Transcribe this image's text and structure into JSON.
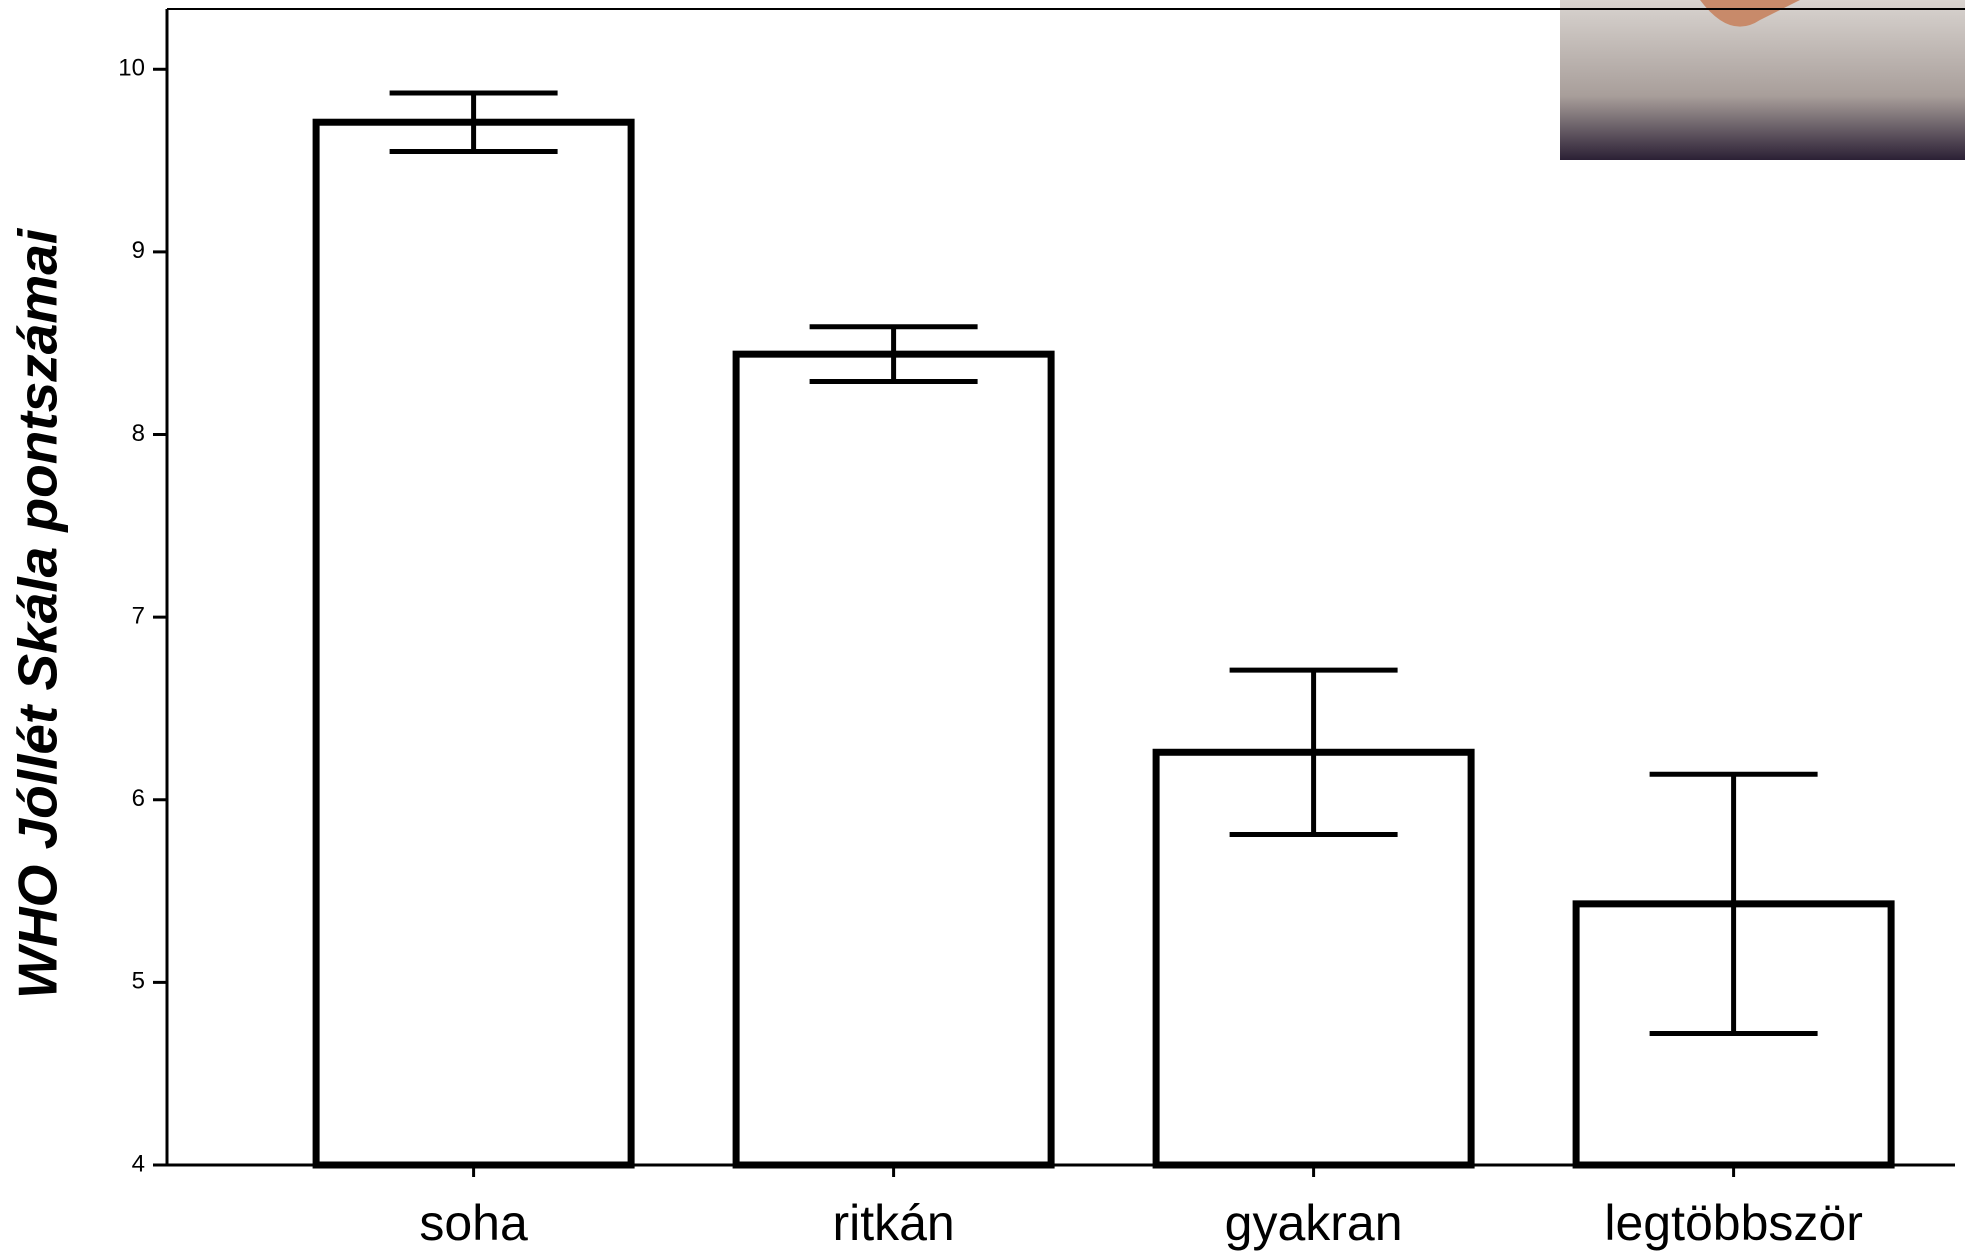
{
  "chart_data": {
    "type": "bar",
    "ylabel": "WHO Jóllét Skála pontszámai",
    "categories": [
      "soha",
      "ritkán",
      "gyakran",
      "legtöbbször"
    ],
    "values": [
      9.71,
      8.44,
      6.26,
      5.43
    ],
    "errors": [
      0.16,
      0.15,
      0.45,
      0.71
    ],
    "color": "#ffffff",
    "ylim": [
      4,
      10.33
    ],
    "yticks": [
      4,
      5,
      6,
      7,
      8,
      9,
      10
    ],
    "grid": false
  }
}
